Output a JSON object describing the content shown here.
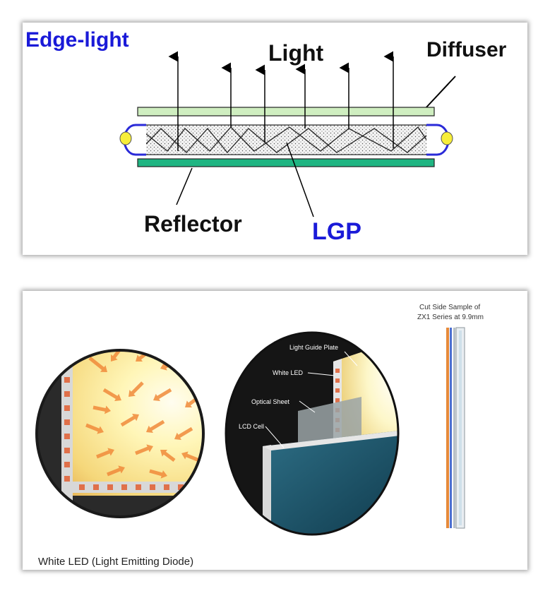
{
  "edge_light_diagram": {
    "title": "Edge-light",
    "light_label": "Light",
    "diffuser_label": "Diffuser",
    "reflector_label": "Reflector",
    "lgp_label": "LGP"
  },
  "led_backlight_illustration": {
    "sample_label_line1": "Cut Side Sample of",
    "sample_label_line2": "ZX1 Series at 9.9mm",
    "callout_light_guide_plate": "Light Guide Plate",
    "callout_white_led": "White LED",
    "callout_optical_sheet": "Optical Sheet",
    "callout_lcd_cell": "LCD Cell",
    "caption": "White LED (Light Emitting Diode)"
  },
  "colors": {
    "title_blue": "#1a1ad8",
    "diffuser_green": "#cfeec0",
    "reflector_green": "#1fb582",
    "lamp_yellow": "#f7ee3a",
    "arrow_orange": "#f08a3a"
  }
}
